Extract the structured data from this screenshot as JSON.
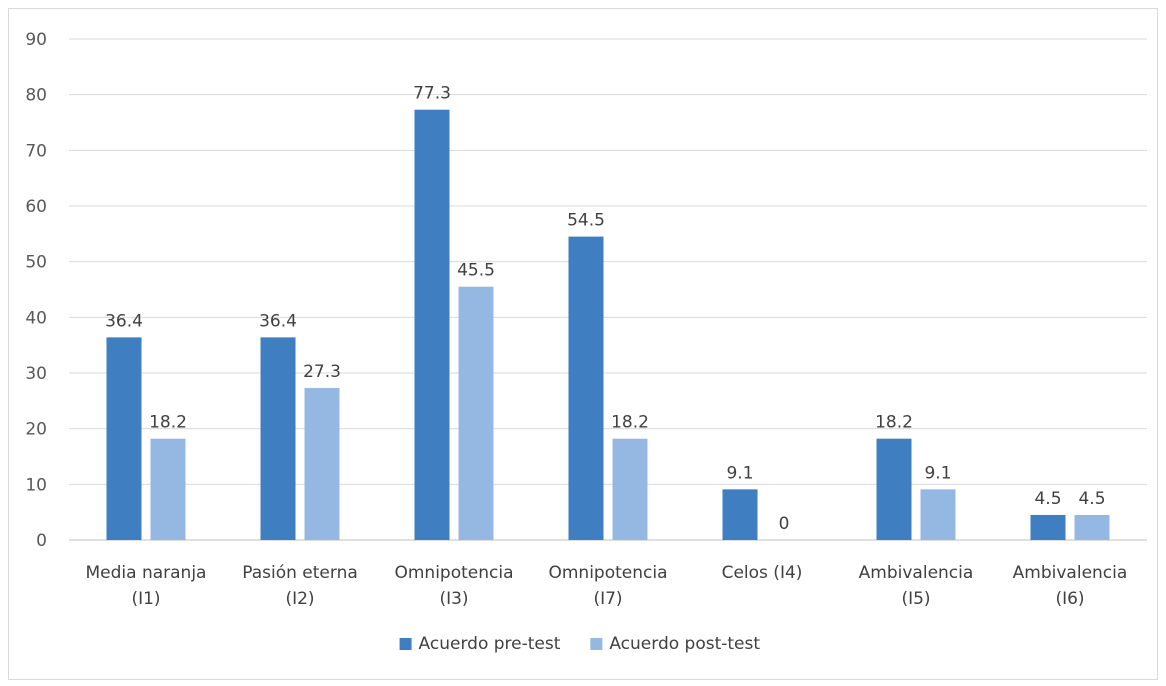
{
  "chart_data": {
    "type": "bar",
    "categories": [
      [
        "Media naranja",
        "(I1)"
      ],
      [
        "Pasión eterna",
        "(I2)"
      ],
      [
        "Omnipotencia",
        "(I3)"
      ],
      [
        "Omnipotencia",
        "(I7)"
      ],
      [
        "Celos (I4)"
      ],
      [
        "Ambivalencia",
        "(I5)"
      ],
      [
        "Ambivalencia",
        "(I6)"
      ]
    ],
    "series": [
      {
        "name": "Acuerdo pre-test",
        "color": "#3f7fc1",
        "values": [
          36.4,
          36.4,
          77.3,
          54.5,
          9.1,
          18.2,
          4.5
        ]
      },
      {
        "name": "Acuerdo post-test",
        "color": "#95b8e3",
        "values": [
          18.2,
          27.3,
          45.5,
          18.2,
          0,
          9.1,
          4.5
        ]
      }
    ],
    "ylim": [
      0,
      90
    ],
    "yticks": [
      "0",
      "10",
      "20",
      "30",
      "40",
      "50",
      "60",
      "70",
      "80",
      "90"
    ],
    "grid": true,
    "legend": "bottom",
    "data_labels": true
  }
}
